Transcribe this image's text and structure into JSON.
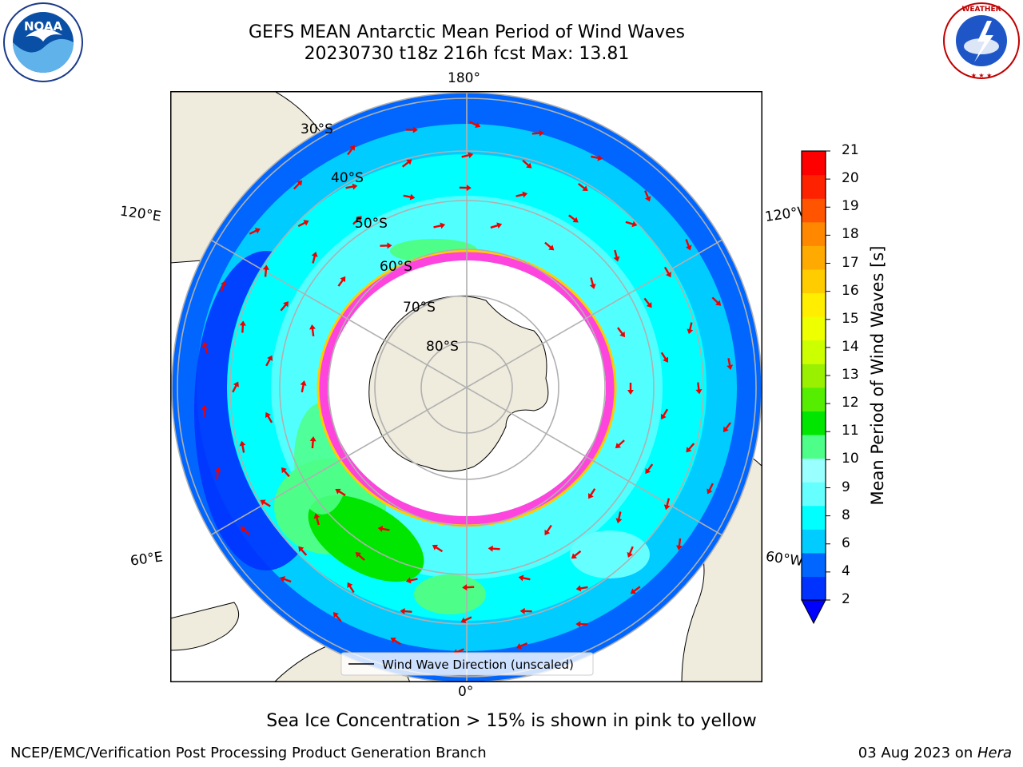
{
  "header": {
    "title_line1": "GEFS MEAN Antarctic Mean Period of Wind Waves",
    "title_line2": "20230730 t18z 216h fcst   Max: 13.81"
  },
  "logos": {
    "left": {
      "name": "NOAA",
      "ring_text": "NATIONAL OCEANIC AND ATMOSPHERIC ADMINISTRATION · U.S. DEPARTMENT OF COMMERCE"
    },
    "right": {
      "name": "NATIONAL WEATHER SERVICE"
    }
  },
  "map": {
    "projection": "south polar stereographic",
    "longitude_labels": {
      "top": "180°",
      "bottom": "0°",
      "left_upper": "120°E",
      "left_lower": "60°E",
      "right_upper": "120°W",
      "right_lower": "60°W"
    },
    "latitude_labels": [
      "30°S",
      "40°S",
      "50°S",
      "60°S",
      "70°S",
      "80°S"
    ],
    "legend_label": "Wind Wave Direction (unscaled)"
  },
  "colorbar": {
    "label": "Mean Period of Wind Waves [s]",
    "ticks": [
      "2",
      "4",
      "6",
      "8",
      "9",
      "10",
      "11",
      "12",
      "13",
      "14",
      "15",
      "16",
      "17",
      "18",
      "19",
      "20",
      "21"
    ],
    "colors": [
      "#0033ff",
      "#0066ff",
      "#00ccff",
      "#00ffff",
      "#66ffff",
      "#99ffff",
      "#4dff88",
      "#00e600",
      "#55ee00",
      "#99f000",
      "#ccff00",
      "#eeff00",
      "#ffee00",
      "#ffcc00",
      "#ffaa00",
      "#ff8800",
      "#ff5500",
      "#ff2200",
      "#ff0000"
    ],
    "underflow_color": "#0000ff"
  },
  "notes": {
    "sea_ice": "Sea Ice Concentration > 15% is shown in pink to yellow"
  },
  "footer": {
    "left": "NCEP/EMC/Verification Post Processing Product Generation Branch",
    "right_prefix": "03 Aug 2023 on ",
    "right_machine": "Hera"
  }
}
